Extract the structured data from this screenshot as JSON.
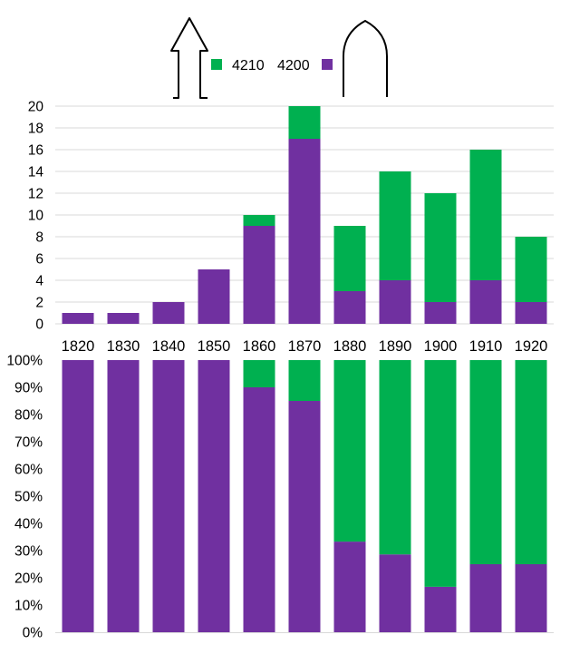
{
  "colors": {
    "series_4210": "#00b050",
    "series_4200": "#7030a0",
    "grid": "#d9d9d9",
    "axis_text": "#000000"
  },
  "icons": {
    "left": "arrow-up-outline-icon",
    "right": "arch-outline-icon"
  },
  "legend": {
    "items": [
      {
        "label": "4210",
        "color": "#00b050"
      },
      {
        "label": "4200",
        "color": "#7030a0"
      }
    ]
  },
  "chart_data": [
    {
      "type": "bar",
      "stacked": true,
      "title": "",
      "xlabel": "",
      "ylabel": "",
      "ylim": [
        0,
        20
      ],
      "yticks": [
        0,
        2,
        4,
        6,
        8,
        10,
        12,
        14,
        16,
        18,
        20
      ],
      "grid": true,
      "legend": "top",
      "categories": [
        "1820",
        "1830",
        "1840",
        "1850",
        "1860",
        "1870",
        "1880",
        "1890",
        "1900",
        "1910",
        "1920"
      ],
      "series": [
        {
          "name": "4200",
          "color": "#7030a0",
          "values": [
            1,
            1,
            2,
            5,
            9,
            17,
            3,
            4,
            2,
            4,
            2
          ]
        },
        {
          "name": "4210",
          "color": "#00b050",
          "values": [
            0,
            0,
            0,
            0,
            1,
            3,
            6,
            10,
            10,
            12,
            6
          ]
        }
      ]
    },
    {
      "type": "bar",
      "stacked": true,
      "percent": true,
      "title": "",
      "xlabel": "",
      "ylabel": "",
      "ylim": [
        0,
        100
      ],
      "yticks": [
        "0%",
        "10%",
        "20%",
        "30%",
        "40%",
        "50%",
        "60%",
        "70%",
        "80%",
        "90%",
        "100%"
      ],
      "grid": false,
      "categories": [
        "1820",
        "1830",
        "1840",
        "1850",
        "1860",
        "1870",
        "1880",
        "1890",
        "1900",
        "1910",
        "1920"
      ],
      "series": [
        {
          "name": "4200",
          "color": "#7030a0",
          "values": [
            100,
            100,
            100,
            100,
            90,
            85,
            33.3,
            28.6,
            16.7,
            25,
            25
          ]
        },
        {
          "name": "4210",
          "color": "#00b050",
          "values": [
            0,
            0,
            0,
            0,
            10,
            15,
            66.7,
            71.4,
            83.3,
            75,
            75
          ]
        }
      ]
    }
  ]
}
